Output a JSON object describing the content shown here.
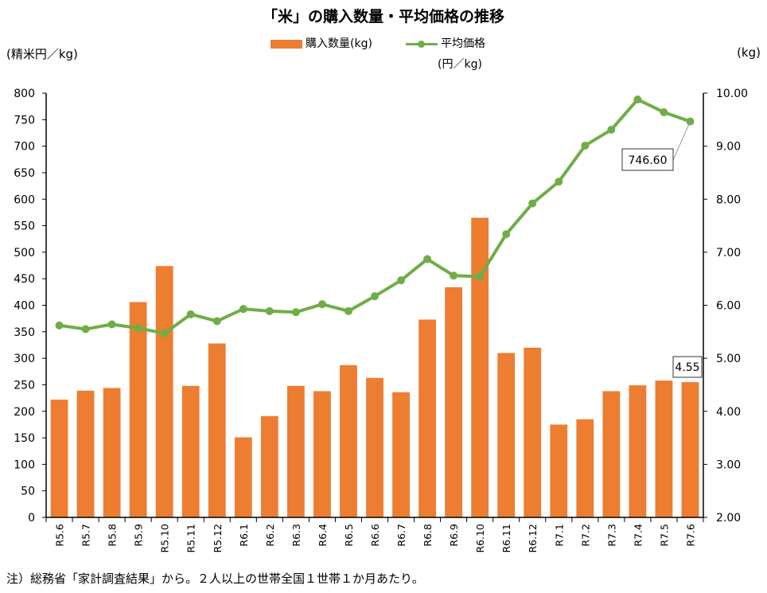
{
  "chart_data": {
    "type": "bar+line",
    "title": "「米」の購入数量・平均価格の推移",
    "y_left_unit": "(精米円／kg)",
    "y_right_unit": "(kg)",
    "categories": [
      "R5.6",
      "R5.7",
      "R5.8",
      "R5.9",
      "R5.10",
      "R5.11",
      "R5.12",
      "R6.1",
      "R6.2",
      "R6.3",
      "R6.4",
      "R6.5",
      "R6.6",
      "R6.7",
      "R6.8",
      "R6.9",
      "R6.10",
      "R6.11",
      "R6.12",
      "R7.1",
      "R7.2",
      "R7.3",
      "R7.4",
      "R7.5",
      "R7.6"
    ],
    "series": [
      {
        "name": "購入数量(kg)",
        "type": "bar",
        "axis": "right",
        "color": "#ED7D31",
        "values": [
          4.22,
          4.39,
          4.44,
          6.06,
          6.74,
          4.48,
          5.28,
          3.51,
          3.91,
          4.48,
          4.38,
          4.87,
          4.63,
          4.36,
          5.73,
          6.34,
          7.65,
          5.1,
          5.2,
          3.75,
          3.85,
          4.38,
          4.49,
          4.58,
          4.55
        ]
      },
      {
        "name": "平均価格",
        "name_line2": "(円／kg)",
        "type": "line",
        "axis": "left",
        "color": "#70AD47",
        "values": [
          362,
          355,
          364,
          357,
          347,
          383,
          370,
          393,
          389,
          387,
          402,
          389,
          417,
          447,
          487,
          456,
          454,
          534,
          592,
          633,
          701,
          731,
          788,
          764,
          746.6
        ]
      }
    ],
    "y_left": {
      "min": 0,
      "max": 800,
      "step": 50,
      "ticks": [
        "0",
        "50",
        "100",
        "150",
        "200",
        "250",
        "300",
        "350",
        "400",
        "450",
        "500",
        "550",
        "600",
        "650",
        "700",
        "750",
        "800"
      ]
    },
    "y_right": {
      "min": 2,
      "max": 10,
      "step": 1,
      "ticks": [
        "2.00",
        "3.00",
        "4.00",
        "5.00",
        "6.00",
        "7.00",
        "8.00",
        "9.00",
        "10.00"
      ]
    },
    "annotations": [
      {
        "text": "746.60",
        "series": 1,
        "index": 24
      },
      {
        "text": "4.55",
        "series": 0,
        "index": 24
      }
    ],
    "legend_position": "top-center",
    "grid": false
  },
  "note": "注）総務省「家計調査結果」から。２人以上の世帯全国１世帯１か月あたり。"
}
